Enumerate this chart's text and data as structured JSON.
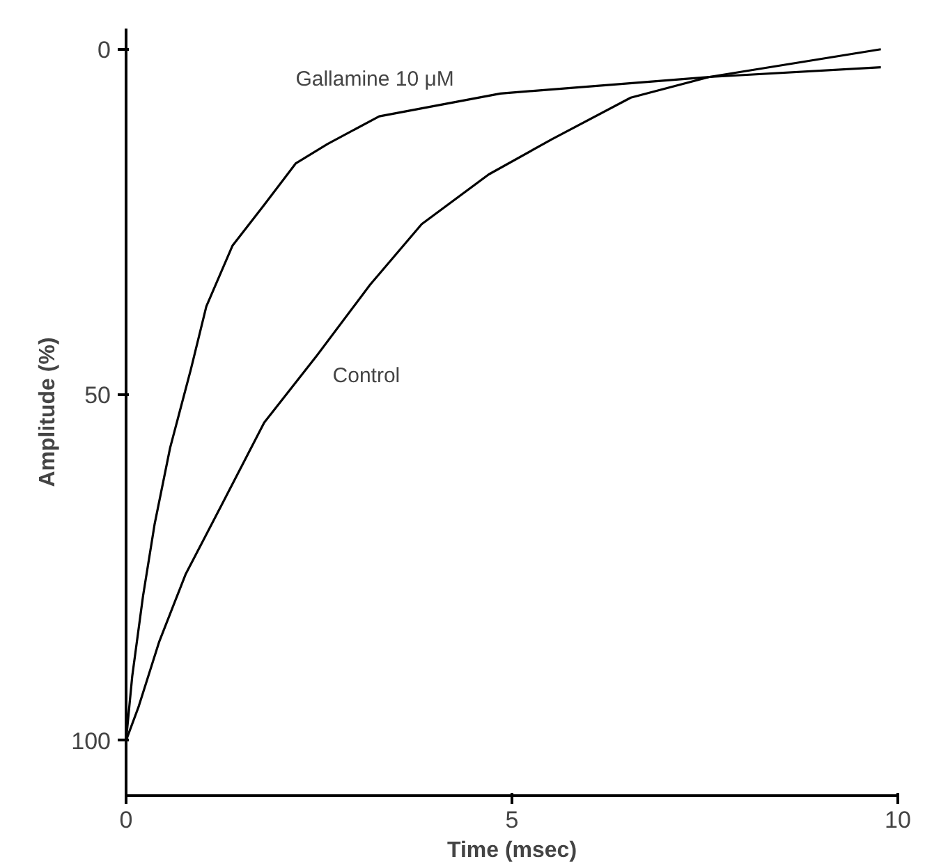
{
  "chart_data": {
    "type": "line",
    "xlabel": "Time (msec)",
    "ylabel": "Amplitude (%)",
    "xlim": [
      0,
      10
    ],
    "ylim": [
      108,
      -3
    ],
    "xticks": [
      0,
      5,
      10
    ],
    "yticks": [
      0,
      50,
      100
    ],
    "grid": false,
    "line_style": "solid",
    "marker": "none",
    "series": [
      {
        "name": "Gallamine 10 μM",
        "color": "#000000",
        "x": [
          0,
          0.08,
          0.22,
          0.37,
          0.57,
          0.84,
          1.04,
          1.38,
          1.79,
          2.2,
          2.61,
          3.28,
          4.85,
          7.56,
          9.78
        ],
        "values": [
          100,
          90.7,
          79.1,
          68.7,
          57.7,
          46.3,
          37.2,
          28.4,
          22.5,
          16.5,
          13.7,
          9.7,
          6.4,
          4.0,
          2.6
        ]
      },
      {
        "name": "Control",
        "color": "#000000",
        "x": [
          0,
          0.16,
          0.43,
          0.77,
          1.24,
          1.79,
          2.46,
          3.16,
          3.83,
          4.7,
          5.52,
          6.54,
          7.56,
          9.78
        ],
        "values": [
          100,
          95.2,
          85.7,
          76,
          65.9,
          54,
          44.5,
          34.1,
          25.3,
          18.1,
          13,
          7.0,
          4.0,
          0
        ]
      }
    ]
  }
}
